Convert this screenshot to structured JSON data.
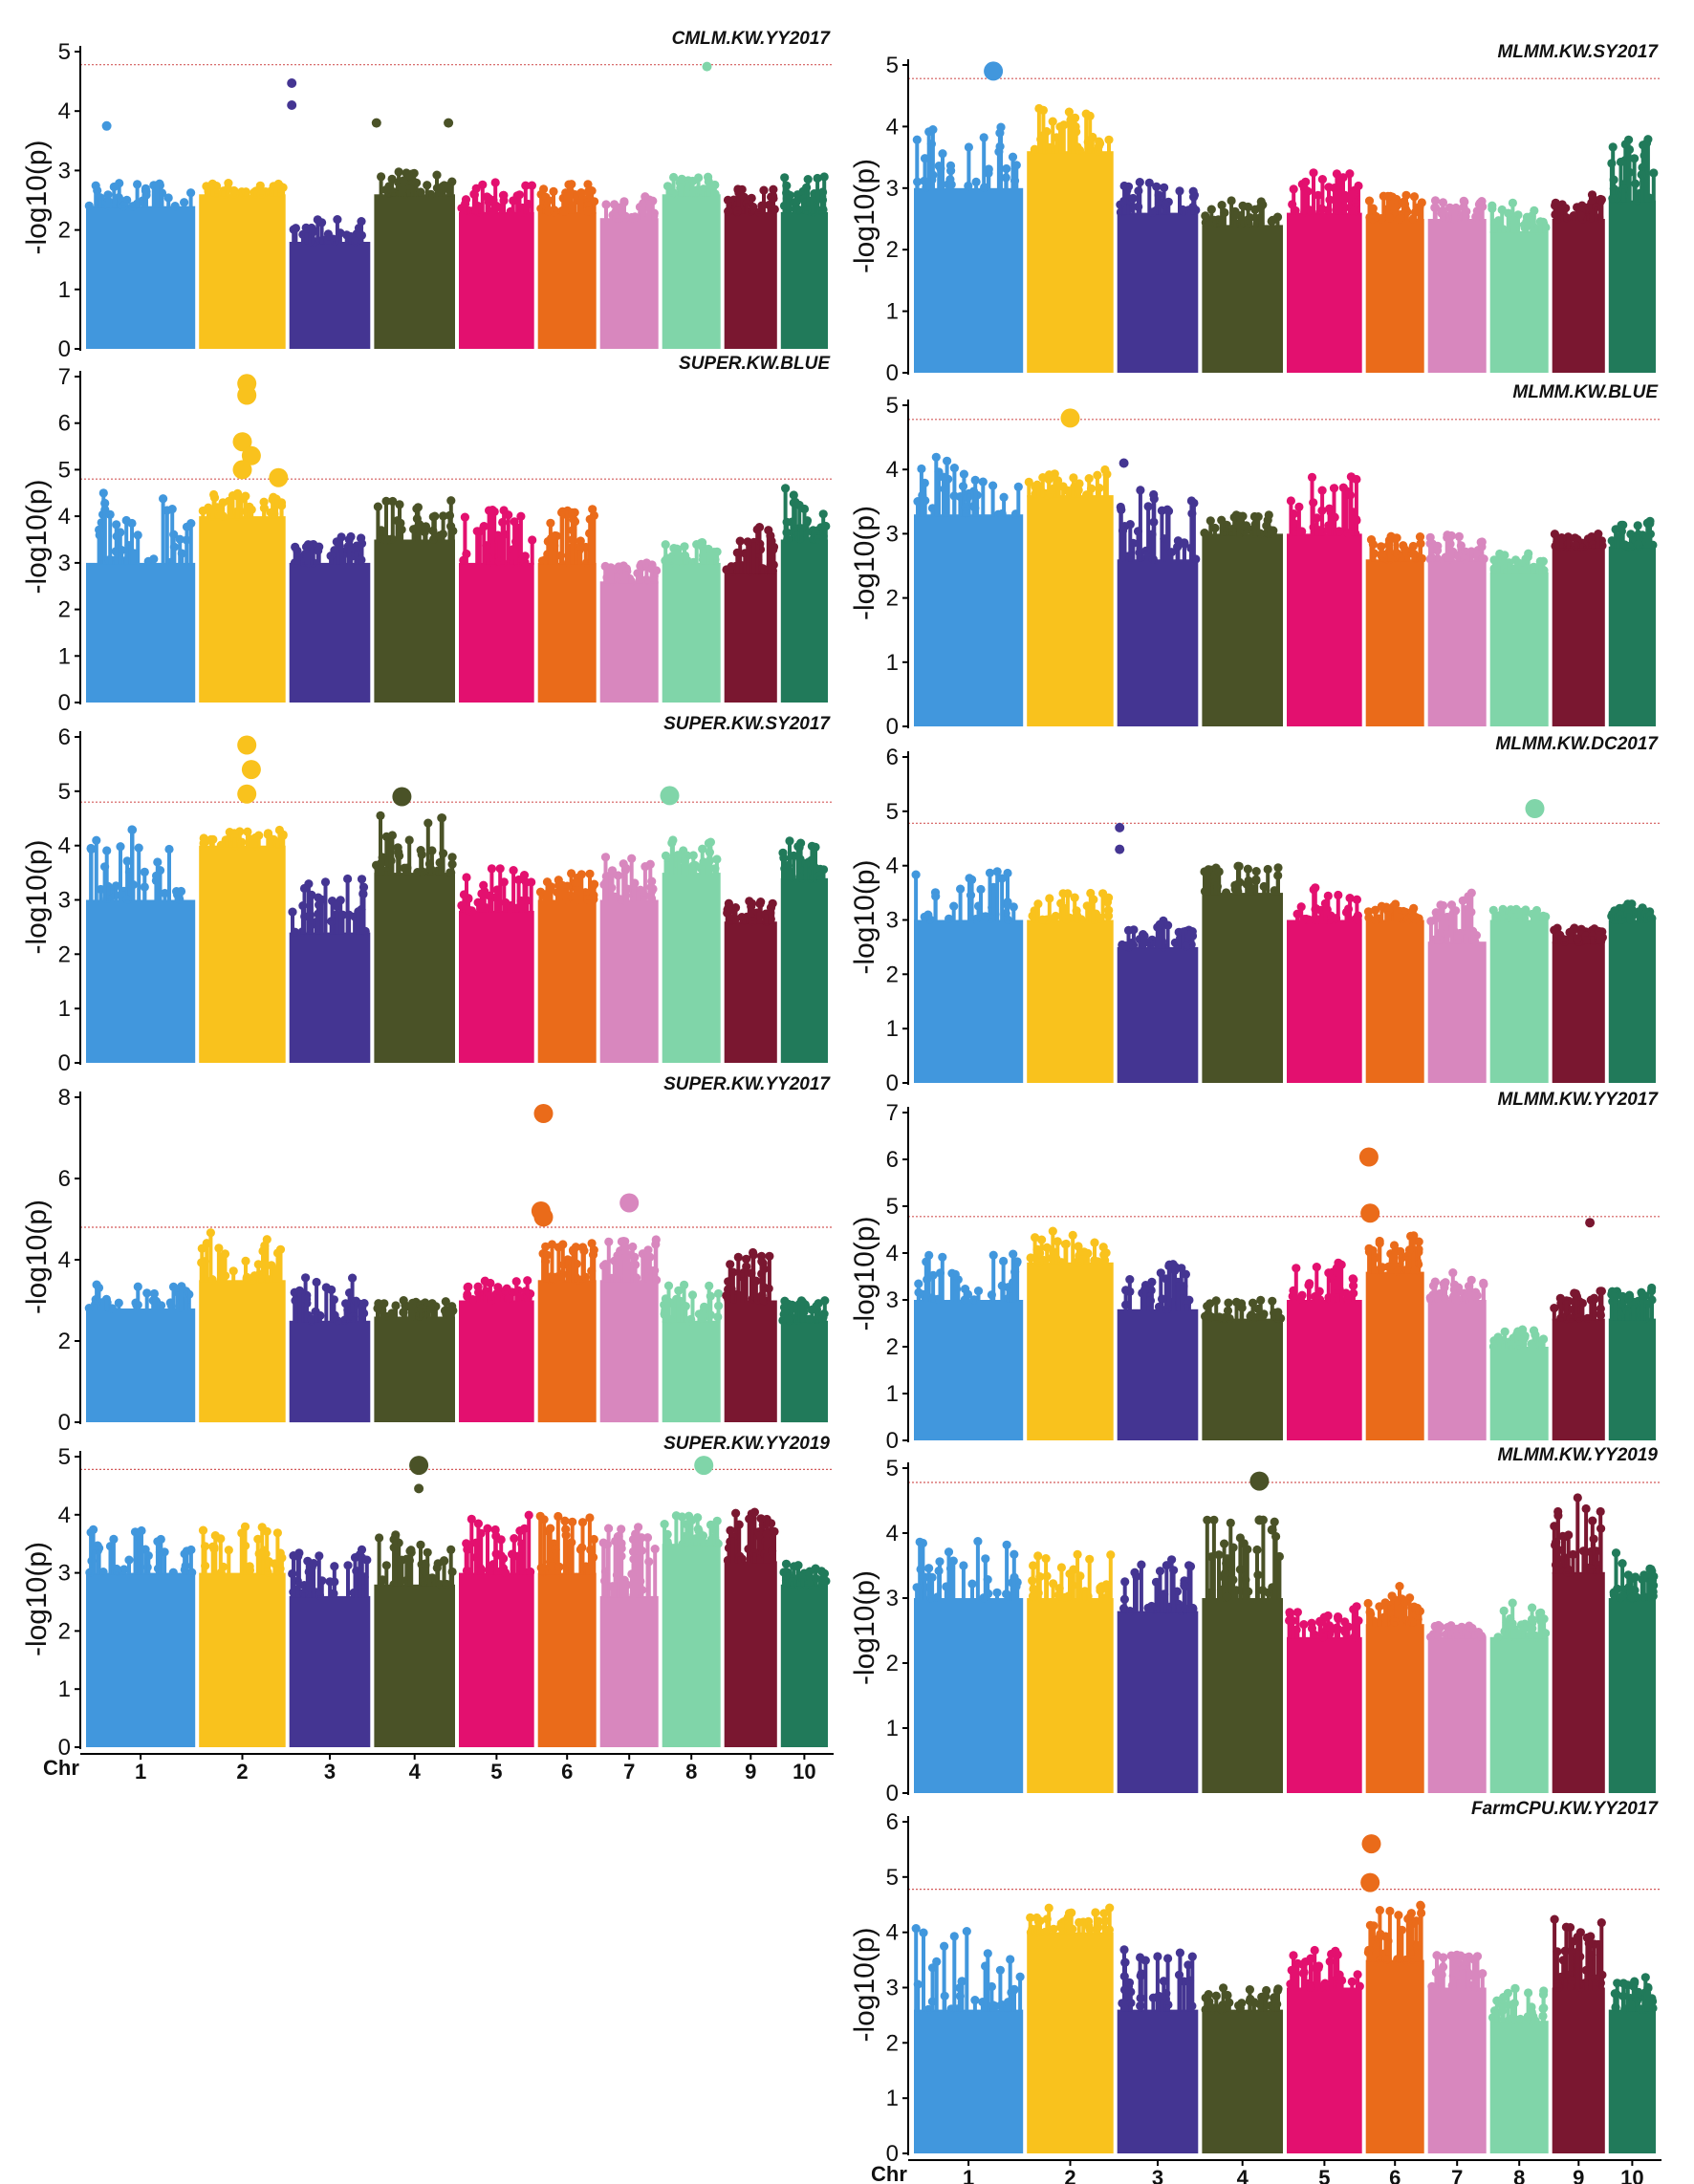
{
  "chromosome_colors": [
    "#4197dd",
    "#f9c21d",
    "#443592",
    "#4a5227",
    "#e3106f",
    "#ea6b1a",
    "#d887be",
    "#80d5a9",
    "#7a1730",
    "#217a5a"
  ],
  "threshold_color": "#d45a5a",
  "chart_data": [
    {
      "type": "scatter",
      "title": "CMLM.KW.YY2017",
      "ylabel": "-log10(p)",
      "ylim": [
        0,
        5
      ],
      "yticks": [
        0,
        1,
        2,
        3,
        4,
        5
      ],
      "threshold": 4.78,
      "column": "left",
      "show_chr_axis": false,
      "base": [
        [
          2.4,
          2.8
        ],
        [
          2.6,
          2.8
        ],
        [
          1.8,
          2.2
        ],
        [
          2.6,
          3.0
        ],
        [
          2.3,
          2.8
        ],
        [
          2.3,
          2.8
        ],
        [
          2.2,
          2.6
        ],
        [
          2.6,
          2.9
        ],
        [
          2.3,
          2.7
        ],
        [
          2.3,
          2.9
        ]
      ],
      "peaks": [
        {
          "chr": 1,
          "pos": 0.2,
          "value": 3.75,
          "big": false
        },
        {
          "chr": 3,
          "pos": 0.05,
          "value": 4.47,
          "big": false
        },
        {
          "chr": 3,
          "pos": 0.05,
          "value": 4.1,
          "big": false
        },
        {
          "chr": 4,
          "pos": 0.05,
          "value": 3.8,
          "big": false
        },
        {
          "chr": 4,
          "pos": 0.9,
          "value": 3.8,
          "big": false
        },
        {
          "chr": 8,
          "pos": 0.75,
          "value": 4.75,
          "big": false
        }
      ]
    },
    {
      "type": "scatter",
      "title": "SUPER.KW.BLUE",
      "ylabel": "-log10(p)",
      "ylim": [
        0,
        7
      ],
      "yticks": [
        0,
        1,
        2,
        3,
        4,
        5,
        6,
        7
      ],
      "threshold": 4.8,
      "column": "left",
      "show_chr_axis": false,
      "base": [
        [
          3.0,
          4.5
        ],
        [
          4.0,
          4.5
        ],
        [
          3.0,
          3.6
        ],
        [
          3.5,
          4.4
        ],
        [
          3.0,
          4.2
        ],
        [
          3.0,
          4.2
        ],
        [
          2.6,
          3.0
        ],
        [
          3.0,
          3.5
        ],
        [
          2.8,
          3.8
        ],
        [
          3.5,
          4.6
        ]
      ],
      "peaks": [
        {
          "chr": 2,
          "pos": 0.55,
          "value": 6.85,
          "big": true
        },
        {
          "chr": 2,
          "pos": 0.55,
          "value": 6.6,
          "big": true
        },
        {
          "chr": 2,
          "pos": 0.5,
          "value": 5.6,
          "big": true
        },
        {
          "chr": 2,
          "pos": 0.6,
          "value": 5.3,
          "big": true
        },
        {
          "chr": 2,
          "pos": 0.5,
          "value": 5.0,
          "big": true
        },
        {
          "chr": 2,
          "pos": 0.9,
          "value": 4.83,
          "big": true
        }
      ]
    },
    {
      "type": "scatter",
      "title": "SUPER.KW.SY2017",
      "ylabel": "-log10(p)",
      "ylim": [
        0,
        6
      ],
      "yticks": [
        0,
        1,
        2,
        3,
        4,
        5,
        6
      ],
      "threshold": 4.8,
      "column": "left",
      "show_chr_axis": false,
      "base": [
        [
          3.0,
          4.3
        ],
        [
          4.0,
          4.3
        ],
        [
          2.4,
          3.4
        ],
        [
          3.5,
          4.6
        ],
        [
          2.8,
          3.6
        ],
        [
          3.0,
          3.5
        ],
        [
          3.0,
          3.8
        ],
        [
          3.5,
          4.1
        ],
        [
          2.6,
          3.0
        ],
        [
          3.4,
          4.1
        ]
      ],
      "peaks": [
        {
          "chr": 2,
          "pos": 0.55,
          "value": 5.85,
          "big": true
        },
        {
          "chr": 2,
          "pos": 0.6,
          "value": 5.4,
          "big": true
        },
        {
          "chr": 2,
          "pos": 0.55,
          "value": 4.95,
          "big": true
        },
        {
          "chr": 4,
          "pos": 0.35,
          "value": 4.9,
          "big": true
        },
        {
          "chr": 8,
          "pos": 0.15,
          "value": 4.92,
          "big": true
        }
      ]
    },
    {
      "type": "scatter",
      "title": "SUPER.KW.YY2017",
      "ylabel": "-log10(p)",
      "ylim": [
        0,
        8
      ],
      "yticks": [
        0,
        2,
        4,
        6,
        8
      ],
      "threshold": 4.8,
      "column": "left",
      "show_chr_axis": false,
      "base": [
        [
          2.8,
          3.4
        ],
        [
          3.5,
          4.7
        ],
        [
          2.5,
          3.6
        ],
        [
          2.6,
          3.0
        ],
        [
          3.0,
          3.6
        ],
        [
          3.5,
          4.5
        ],
        [
          3.5,
          4.5
        ],
        [
          2.5,
          3.4
        ],
        [
          3.0,
          4.2
        ],
        [
          2.5,
          3.0
        ]
      ],
      "peaks": [
        {
          "chr": 6,
          "pos": 0.12,
          "value": 7.6,
          "big": true
        },
        {
          "chr": 6,
          "pos": 0.08,
          "value": 5.2,
          "big": true
        },
        {
          "chr": 6,
          "pos": 0.12,
          "value": 5.05,
          "big": true
        },
        {
          "chr": 7,
          "pos": 0.5,
          "value": 5.4,
          "big": true
        }
      ]
    },
    {
      "type": "scatter",
      "title": "SUPER.KW.YY2019",
      "ylabel": "-log10(p)",
      "ylim": [
        0,
        5
      ],
      "yticks": [
        0,
        1,
        2,
        3,
        4,
        5
      ],
      "threshold": 4.78,
      "column": "left",
      "show_chr_axis": true,
      "base": [
        [
          3.0,
          3.8
        ],
        [
          3.0,
          3.8
        ],
        [
          2.6,
          3.4
        ],
        [
          2.8,
          3.7
        ],
        [
          3.0,
          4.0
        ],
        [
          3.0,
          4.0
        ],
        [
          2.6,
          3.8
        ],
        [
          3.5,
          4.0
        ],
        [
          3.2,
          4.1
        ],
        [
          2.8,
          3.2
        ]
      ],
      "peaks": [
        {
          "chr": 4,
          "pos": 0.55,
          "value": 4.85,
          "big": true
        },
        {
          "chr": 4,
          "pos": 0.55,
          "value": 4.45,
          "big": false
        },
        {
          "chr": 8,
          "pos": 0.7,
          "value": 4.85,
          "big": true
        }
      ]
    },
    {
      "type": "scatter",
      "title": "MLMM.KW.SY2017",
      "ylabel": "-log10(p)",
      "ylim": [
        0,
        5
      ],
      "yticks": [
        0,
        1,
        2,
        3,
        4,
        5
      ],
      "threshold": 4.78,
      "column": "right",
      "show_chr_axis": false,
      "base": [
        [
          3.0,
          4.0
        ],
        [
          3.6,
          4.3
        ],
        [
          2.6,
          3.2
        ],
        [
          2.4,
          2.8
        ],
        [
          2.6,
          3.3
        ],
        [
          2.5,
          2.9
        ],
        [
          2.5,
          2.8
        ],
        [
          2.3,
          2.8
        ],
        [
          2.5,
          2.9
        ],
        [
          2.8,
          3.8
        ]
      ],
      "peaks": [
        {
          "chr": 1,
          "pos": 0.72,
          "value": 4.9,
          "big": true
        }
      ]
    },
    {
      "type": "scatter",
      "title": "MLMM.KW.BLUE",
      "ylabel": "-log10(p)",
      "ylim": [
        0,
        5
      ],
      "yticks": [
        0,
        1,
        2,
        3,
        4,
        5
      ],
      "threshold": 4.78,
      "column": "right",
      "show_chr_axis": false,
      "base": [
        [
          3.3,
          4.2
        ],
        [
          3.6,
          4.0
        ],
        [
          2.6,
          3.7
        ],
        [
          3.0,
          3.3
        ],
        [
          3.0,
          3.9
        ],
        [
          2.6,
          3.0
        ],
        [
          2.6,
          3.0
        ],
        [
          2.4,
          2.7
        ],
        [
          2.8,
          3.0
        ],
        [
          2.8,
          3.2
        ]
      ],
      "peaks": [
        {
          "chr": 2,
          "pos": 0.5,
          "value": 4.8,
          "big": true
        },
        {
          "chr": 3,
          "pos": 0.1,
          "value": 4.1,
          "big": false
        }
      ]
    },
    {
      "type": "scatter",
      "title": "MLMM.KW.DC2017",
      "ylabel": "-log10(p)",
      "ylim": [
        0,
        6
      ],
      "yticks": [
        0,
        1,
        2,
        3,
        4,
        5,
        6
      ],
      "threshold": 4.78,
      "column": "right",
      "show_chr_axis": false,
      "base": [
        [
          3.0,
          3.9
        ],
        [
          3.0,
          3.5
        ],
        [
          2.5,
          3.0
        ],
        [
          3.5,
          4.0
        ],
        [
          3.0,
          3.6
        ],
        [
          3.0,
          3.3
        ],
        [
          2.6,
          3.6
        ],
        [
          3.0,
          3.2
        ],
        [
          2.6,
          2.9
        ],
        [
          3.0,
          3.3
        ]
      ],
      "peaks": [
        {
          "chr": 8,
          "pos": 0.75,
          "value": 5.05,
          "big": true
        },
        {
          "chr": 3,
          "pos": 0.05,
          "value": 4.7,
          "big": false
        },
        {
          "chr": 3,
          "pos": 0.05,
          "value": 4.3,
          "big": false
        }
      ]
    },
    {
      "type": "scatter",
      "title": "MLMM.KW.YY2017",
      "ylabel": "-log10(p)",
      "ylim": [
        0,
        7
      ],
      "yticks": [
        0,
        1,
        2,
        3,
        4,
        5,
        6,
        7
      ],
      "threshold": 4.78,
      "column": "right",
      "show_chr_axis": false,
      "base": [
        [
          3.0,
          4.0
        ],
        [
          3.8,
          4.5
        ],
        [
          2.8,
          3.8
        ],
        [
          2.6,
          3.0
        ],
        [
          3.0,
          3.8
        ],
        [
          3.6,
          4.4
        ],
        [
          3.0,
          3.6
        ],
        [
          2.0,
          2.4
        ],
        [
          2.6,
          3.2
        ],
        [
          2.6,
          3.3
        ]
      ],
      "peaks": [
        {
          "chr": 6,
          "pos": 0.08,
          "value": 6.05,
          "big": true
        },
        {
          "chr": 6,
          "pos": 0.1,
          "value": 4.85,
          "big": true
        },
        {
          "chr": 9,
          "pos": 0.7,
          "value": 4.65,
          "big": false
        }
      ]
    },
    {
      "type": "scatter",
      "title": "MLMM.KW.YY2019",
      "ylabel": "-log10(p)",
      "ylim": [
        0,
        5
      ],
      "yticks": [
        0,
        1,
        2,
        3,
        4,
        5
      ],
      "threshold": 4.78,
      "column": "right",
      "show_chr_axis": false,
      "base": [
        [
          3.0,
          3.9
        ],
        [
          3.0,
          3.7
        ],
        [
          2.8,
          3.6
        ],
        [
          3.0,
          4.3
        ],
        [
          2.4,
          2.9
        ],
        [
          2.6,
          3.2
        ],
        [
          2.4,
          2.6
        ],
        [
          2.4,
          3.0
        ],
        [
          3.4,
          4.6
        ],
        [
          3.0,
          3.7
        ]
      ],
      "peaks": [
        {
          "chr": 4,
          "pos": 0.7,
          "value": 4.8,
          "big": true
        },
        {
          "chr": 4,
          "pos": 0.7,
          "value": 4.2,
          "big": false
        },
        {
          "chr": 4,
          "pos": 0.85,
          "value": 4.05,
          "big": false
        }
      ]
    },
    {
      "type": "scatter",
      "title": "FarmCPU.KW.YY2017",
      "ylabel": "-log10(p)",
      "ylim": [
        0,
        6
      ],
      "yticks": [
        0,
        1,
        2,
        3,
        4,
        5,
        6
      ],
      "threshold": 4.78,
      "column": "right",
      "show_chr_axis": true,
      "base": [
        [
          2.6,
          4.2
        ],
        [
          4.0,
          4.5
        ],
        [
          2.6,
          3.7
        ],
        [
          2.6,
          3.0
        ],
        [
          3.0,
          3.7
        ],
        [
          3.5,
          4.5
        ],
        [
          3.0,
          3.6
        ],
        [
          2.4,
          3.0
        ],
        [
          3.0,
          4.3
        ],
        [
          2.6,
          3.2
        ]
      ],
      "peaks": [
        {
          "chr": 6,
          "pos": 0.12,
          "value": 5.6,
          "big": true
        },
        {
          "chr": 6,
          "pos": 0.1,
          "value": 4.9,
          "big": true
        }
      ]
    }
  ],
  "x_axis": {
    "label": "Chr",
    "chromosomes": [
      "1",
      "2",
      "3",
      "4",
      "5",
      "6",
      "7",
      "8",
      "9",
      "10"
    ]
  }
}
